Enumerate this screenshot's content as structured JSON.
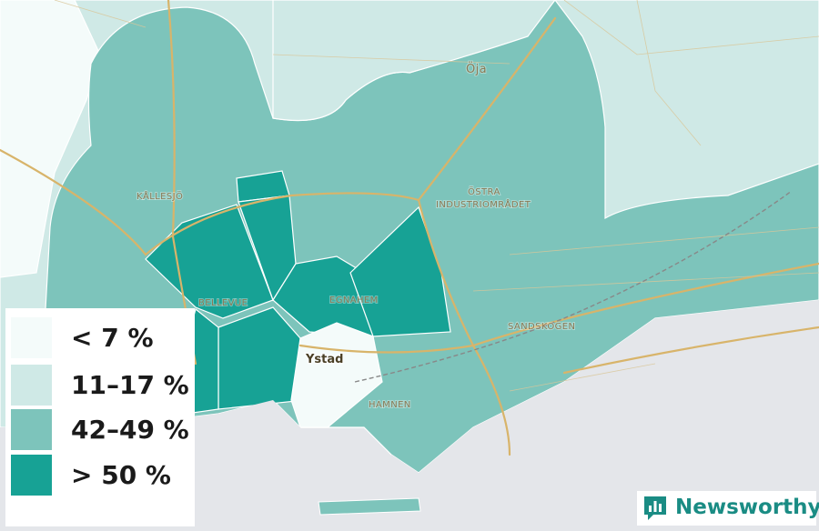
{
  "map": {
    "colors": {
      "sea": "#e4e6ea",
      "lowest": "#f4fbfa",
      "low": "#cfe9e6",
      "mid": "#7dc4bb",
      "high": "#17a295",
      "road_major": "#d8b46a",
      "road_minor": "#d9c79a",
      "boundary": "#ffffff",
      "rail": "#888888"
    },
    "place_labels": {
      "oja": "Öja",
      "kallesjo": "KÅLLESJÖ",
      "ostra_1": "ÖSTRA",
      "ostra_2": "INDUSTRIOMRÅDET",
      "bellevue": "BELLEVUE",
      "egnahem": "EGNAHEM",
      "sandskogen": "SANDSKOGEN",
      "hamnen": "HAMNEN",
      "ystad": "Ystad"
    }
  },
  "legend": {
    "items": [
      {
        "label": "< 7 %",
        "color": "#f4fbfa"
      },
      {
        "label": "11–17 %",
        "color": "#cfe9e6"
      },
      {
        "label": "42–49 %",
        "color": "#7dc4bb"
      },
      {
        "label": "> 50 %",
        "color": "#17a295"
      }
    ]
  },
  "brand": {
    "name": "Newsworthy",
    "color": "#1a8c84"
  }
}
